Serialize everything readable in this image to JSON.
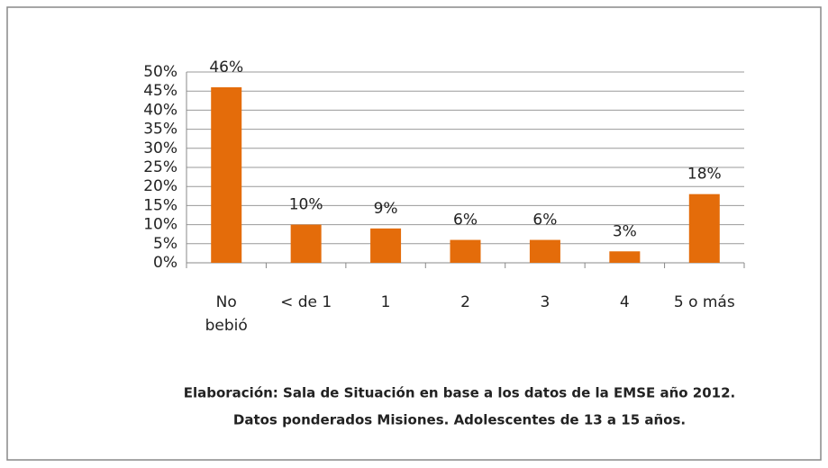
{
  "chart_data": {
    "type": "bar",
    "categories": [
      "No bebió",
      "< de 1",
      "1",
      "2",
      "3",
      "4",
      "5 o más"
    ],
    "values": [
      46,
      10,
      9,
      6,
      6,
      3,
      18
    ],
    "value_labels": [
      "46%",
      "10%",
      "9%",
      "6%",
      "6%",
      "3%",
      "18%"
    ],
    "color": "#e46c0a",
    "ylim": [
      0,
      50
    ],
    "yticks": [
      {
        "value": 0,
        "label": "0%"
      },
      {
        "value": 5,
        "label": "5%"
      },
      {
        "value": 10,
        "label": "10%"
      },
      {
        "value": 15,
        "label": "15%"
      },
      {
        "value": 20,
        "label": "20%"
      },
      {
        "value": 25,
        "label": "25%"
      },
      {
        "value": 30,
        "label": "30%"
      },
      {
        "value": 35,
        "label": "35%"
      },
      {
        "value": 40,
        "label": "40%"
      },
      {
        "value": 45,
        "label": "45%"
      },
      {
        "value": 50,
        "label": "50%"
      }
    ],
    "grid": true,
    "footnote": [
      "Elaboración: Sala de Situación en base a los datos de la EMSE año 2012.",
      "Datos ponderados Misiones. Adolescentes de 13 a 15 años."
    ]
  }
}
